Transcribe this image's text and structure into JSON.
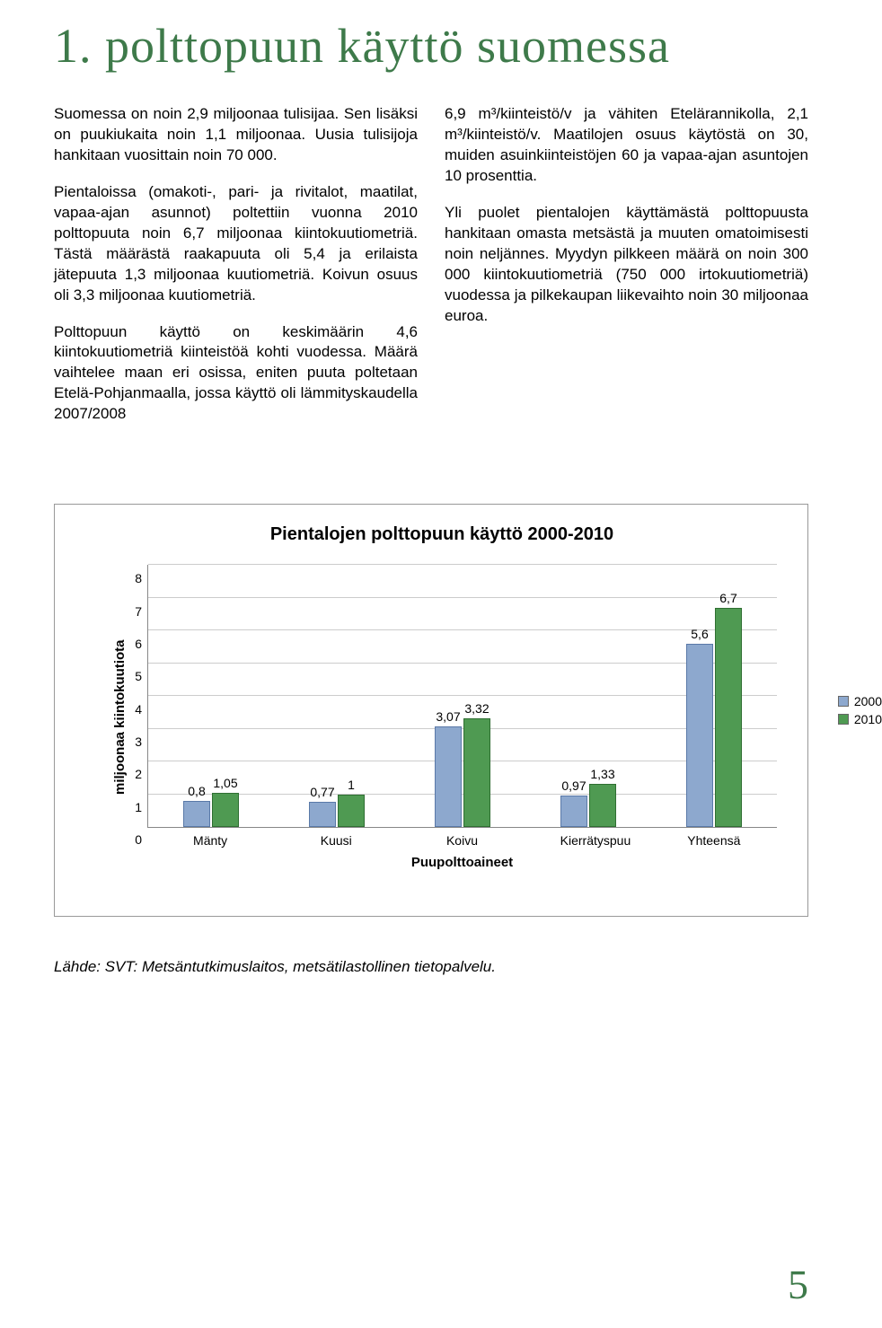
{
  "title": "1. polttopuun käyttö suomessa",
  "left_col": {
    "p1": "Suomessa on noin 2,9 miljoonaa tulisijaa. Sen lisäksi on puukiukaita noin 1,1 miljoonaa. Uusia tulisijoja hankitaan vuosittain noin 70 000.",
    "p2": "Pientaloissa (omakoti-, pari- ja rivitalot, maatilat, vapaa-ajan asunnot) poltettiin vuonna 2010 polttopuuta noin 6,7 miljoonaa kiintokuutiometriä. Tästä määrästä raakapuuta oli 5,4 ja erilaista jätepuuta 1,3 miljoonaa kuutiometriä. Koivun osuus oli 3,3 miljoonaa kuutiometriä.",
    "p3": "Polttopuun käyttö on keskimäärin 4,6 kiintokuutiometriä kiinteistöä kohti vuodessa. Määrä vaihtelee maan eri osissa, eniten puuta poltetaan Etelä-Pohjanmaalla, jossa käyttö oli lämmityskaudella 2007/2008"
  },
  "right_col": {
    "p1": "6,9 m³/kiinteistö/v ja vähiten Etelärannikolla, 2,1 m³/kiinteistö/v. Maatilojen osuus käytöstä on 30, muiden asuinkiinteistöjen 60 ja vapaa-ajan asuntojen 10 prosenttia.",
    "p2": "Yli puolet pientalojen käyttämästä polttopuusta hankitaan omasta metsästä ja muuten omatoimisesti noin neljännes. Myydyn pilkkeen määrä on noin 300 000 kiintokuutiometriä (750 000 irtokuutiometriä) vuodessa ja pilkekaupan liikevaihto noin 30 miljoonaa euroa."
  },
  "chart": {
    "title": "Pientalojen polttopuun käyttö 2000-2010",
    "y_label": "miljoonaa kiintokuutiota",
    "x_label": "Puupolttoaineet",
    "y_max": 8,
    "y_ticks": [
      "0",
      "1",
      "2",
      "3",
      "4",
      "5",
      "6",
      "7",
      "8"
    ],
    "categories": [
      "Mänty",
      "Kuusi",
      "Koivu",
      "Kierrätyspuu",
      "Yhteensä"
    ],
    "series": [
      {
        "name": "2000",
        "color": "#8da8ce",
        "border": "#5a79a8",
        "values": [
          0.8,
          0.77,
          3.07,
          0.97,
          5.6
        ],
        "labels": [
          "0,8",
          "0,77",
          "3,07",
          "0,97",
          "5,6"
        ]
      },
      {
        "name": "2010",
        "color": "#4f9a52",
        "border": "#2f6f32",
        "values": [
          1.05,
          1,
          3.32,
          1.33,
          6.7
        ],
        "labels": [
          "1,05",
          "1",
          "3,32",
          "1,33",
          "6,7"
        ]
      }
    ],
    "legend_labels": [
      "2000",
      "2010"
    ]
  },
  "source": "Lähde: SVT: Metsäntutkimuslaitos, metsätilastollinen tietopalvelu.",
  "page_number": "5"
}
